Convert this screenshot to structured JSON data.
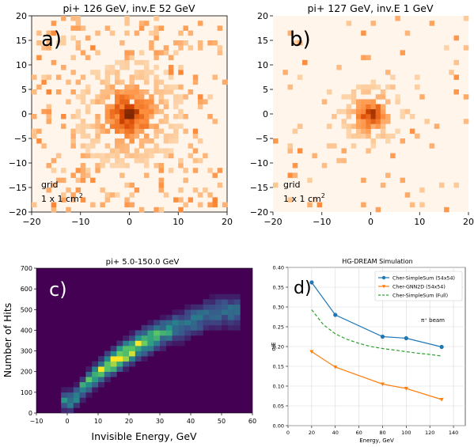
{
  "chart_data": [
    {
      "id": "a",
      "type": "heatmap",
      "title": "pi+ 126 GeV, inv.E 52 GeV",
      "panel_label": "a)",
      "note_line1": "grid",
      "note_line2": "1 x 1 cm",
      "note_sup": "2",
      "xlim": [
        -20,
        20
      ],
      "ylim": [
        -20,
        20
      ],
      "xticks": [
        "−20",
        "−10",
        "0",
        "10",
        "20"
      ],
      "yticks": [
        "−20",
        "−15",
        "−10",
        "−5",
        "0",
        "5",
        "10",
        "15",
        "20"
      ],
      "colormap": [
        "#fff5eb",
        "#fdd0a2",
        "#fd8d3c",
        "#d94801",
        "#7f2704"
      ],
      "core_width": 4.5,
      "occupancy": 0.85,
      "halo_occupancy": 0.18
    },
    {
      "id": "b",
      "type": "heatmap",
      "title": "pi+ 127 GeV, inv.E 1 GeV",
      "panel_label": "b)",
      "note_line1": "grid",
      "note_line2": "1 x 1 cm",
      "note_sup": "2",
      "xlim": [
        -20,
        20
      ],
      "ylim": [
        -20,
        20
      ],
      "xticks": [
        "−20",
        "−10",
        "0",
        "10",
        "20"
      ],
      "yticks": [
        "−20",
        "−15",
        "−10",
        "−5",
        "0",
        "5",
        "10",
        "15",
        "20"
      ],
      "colormap": [
        "#fff5eb",
        "#fdd0a2",
        "#fd8d3c",
        "#d94801",
        "#7f2704"
      ],
      "core_width": 2.6,
      "occupancy": 0.9,
      "halo_occupancy": 0.05
    },
    {
      "id": "c",
      "type": "heatmap",
      "title": "pi+  5.0-150.0 GeV",
      "panel_label": "c)",
      "xlabel": "Invisible Energy, GeV",
      "ylabel": "Number of Hits",
      "xlim": [
        -10,
        60
      ],
      "ylim": [
        0,
        700
      ],
      "xticks": [
        "−10",
        "0",
        "10",
        "20",
        "30",
        "40",
        "50",
        "60"
      ],
      "yticks": [
        "0",
        "100",
        "200",
        "300",
        "400",
        "500",
        "600",
        "700"
      ],
      "background": "#440154",
      "colormap": [
        "#440154",
        "#3b528b",
        "#21918c",
        "#5ec962",
        "#fde725"
      ],
      "ridge": [
        [
          2,
          60
        ],
        [
          5,
          120
        ],
        [
          10,
          190
        ],
        [
          15,
          250
        ],
        [
          20,
          300
        ],
        [
          25,
          345
        ],
        [
          30,
          380
        ],
        [
          35,
          410
        ],
        [
          40,
          440
        ],
        [
          45,
          470
        ],
        [
          50,
          490
        ]
      ]
    },
    {
      "id": "d",
      "type": "line",
      "title": "HG-DREAM Simulation",
      "panel_label": "d)",
      "xlabel": "Energy, GeV",
      "ylabel": "σ/E",
      "annotation": "π⁺ beam",
      "xlim": [
        0,
        150
      ],
      "ylim": [
        0,
        0.4
      ],
      "xticks": [
        0,
        20,
        40,
        60,
        80,
        100,
        120,
        140
      ],
      "yticks": [
        "0.00",
        "0.05",
        "0.10",
        "0.15",
        "0.20",
        "0.25",
        "0.30",
        "0.35",
        "0.40"
      ],
      "grid": true,
      "legend_position": "top-right",
      "series": [
        {
          "name": "Cher-SimpleSum (54x54)",
          "color": "#1f77b4",
          "style": "solid",
          "marker": "circle",
          "x": [
            20,
            40,
            80,
            100,
            130
          ],
          "y": [
            0.362,
            0.28,
            0.225,
            0.221,
            0.199
          ]
        },
        {
          "name": "Cher-GNN2D (54x54)",
          "color": "#ff7f0e",
          "style": "solid",
          "marker": "triangle",
          "x": [
            20,
            40,
            80,
            100,
            130
          ],
          "y": [
            0.187,
            0.148,
            0.105,
            0.094,
            0.066
          ]
        },
        {
          "name": "Cher-SimpleSum (Full)",
          "color": "#2ca02c",
          "style": "dashed",
          "marker": "none",
          "x": [
            20,
            30,
            40,
            50,
            60,
            70,
            80,
            90,
            100,
            110,
            120,
            130
          ],
          "y": [
            0.293,
            0.255,
            0.232,
            0.218,
            0.208,
            0.2,
            0.195,
            0.191,
            0.187,
            0.183,
            0.18,
            0.176
          ]
        }
      ]
    }
  ]
}
